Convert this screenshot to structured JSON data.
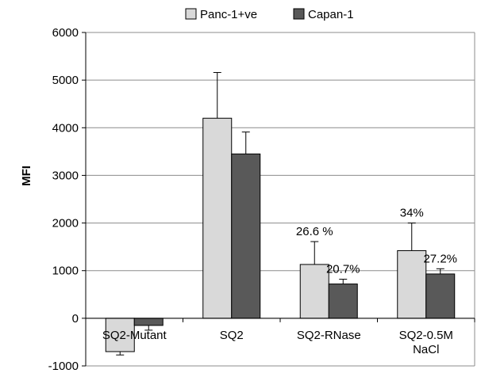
{
  "chart_data": {
    "type": "bar",
    "title": "",
    "xlabel": "",
    "ylabel": "MFI",
    "ylim": [
      -1000,
      6000
    ],
    "yticks": [
      -1000,
      0,
      1000,
      2000,
      3000,
      4000,
      5000,
      6000
    ],
    "grid": true,
    "legend_position": "top",
    "categories": [
      [
        "SQ2-Mutant"
      ],
      [
        "SQ2"
      ],
      [
        "SQ2-RNase"
      ],
      [
        "SQ2-0.5M",
        "NaCl"
      ]
    ],
    "series": [
      {
        "name": "Panc-1+ve",
        "color": "#d9d9d9",
        "values": [
          -700,
          4200,
          1130,
          1420
        ],
        "errors": [
          70,
          960,
          480,
          580
        ],
        "labels": [
          "",
          "",
          "26.6 %",
          "34%"
        ]
      },
      {
        "name": "Capan-1",
        "color": "#595959",
        "values": [
          -150,
          3450,
          720,
          930
        ],
        "errors": [
          100,
          460,
          100,
          110
        ],
        "labels": [
          "",
          "",
          "20.7%",
          "27.2%"
        ]
      }
    ]
  }
}
